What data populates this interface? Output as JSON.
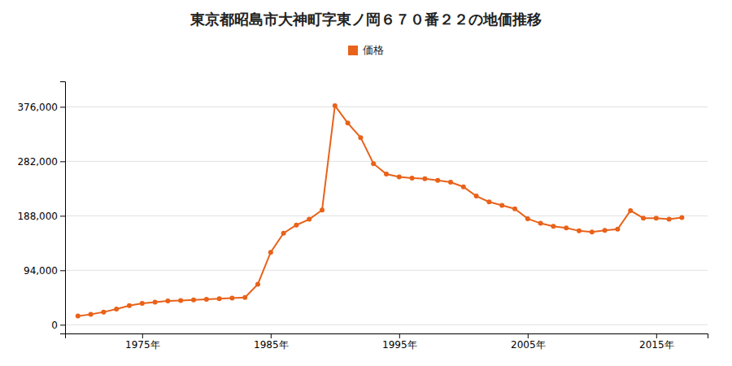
{
  "chart_data": {
    "type": "line",
    "title": "東京都昭島市大神町字東ノ岡６７０番２２の地価推移",
    "x": [
      1970,
      1971,
      1972,
      1973,
      1974,
      1975,
      1976,
      1977,
      1978,
      1979,
      1980,
      1981,
      1982,
      1983,
      1984,
      1985,
      1986,
      1987,
      1988,
      1989,
      1990,
      1991,
      1992,
      1993,
      1994,
      1995,
      1996,
      1997,
      1998,
      1999,
      2000,
      2001,
      2002,
      2003,
      2004,
      2005,
      2006,
      2007,
      2008,
      2009,
      2010,
      2011,
      2012,
      2013,
      2014,
      2015,
      2016,
      2017
    ],
    "series": [
      {
        "name": "価格",
        "color": "#e8621a",
        "marker": "circle",
        "values": [
          15000,
          18000,
          22000,
          27000,
          33000,
          37000,
          39000,
          41000,
          42000,
          43000,
          44000,
          45000,
          46000,
          47000,
          70000,
          125000,
          158000,
          172000,
          182000,
          198000,
          378000,
          348000,
          323000,
          278000,
          260000,
          255000,
          253000,
          252000,
          249000,
          246000,
          238000,
          222000,
          212000,
          206000,
          200000,
          183000,
          175000,
          170000,
          167000,
          162000,
          160000,
          163000,
          165000,
          197000,
          184000,
          184000,
          182000,
          185000
        ]
      }
    ],
    "xlim": [
      1969,
      2019
    ],
    "xticks": [
      {
        "value": 1975,
        "label": "1975年"
      },
      {
        "value": 1985,
        "label": "1985年"
      },
      {
        "value": 1995,
        "label": "1995年"
      },
      {
        "value": 2005,
        "label": "2005年"
      },
      {
        "value": 2015,
        "label": "2015年"
      }
    ],
    "ylim": [
      -15000,
      420000
    ],
    "yticks": [
      0,
      {
        "value": 94000,
        "label": "94,000"
      },
      {
        "value": 188000,
        "label": "188,000"
      },
      {
        "value": 282000,
        "label": "282,000"
      },
      {
        "value": 376000,
        "label": "376,000"
      }
    ],
    "grid": "y",
    "legend": "top"
  }
}
